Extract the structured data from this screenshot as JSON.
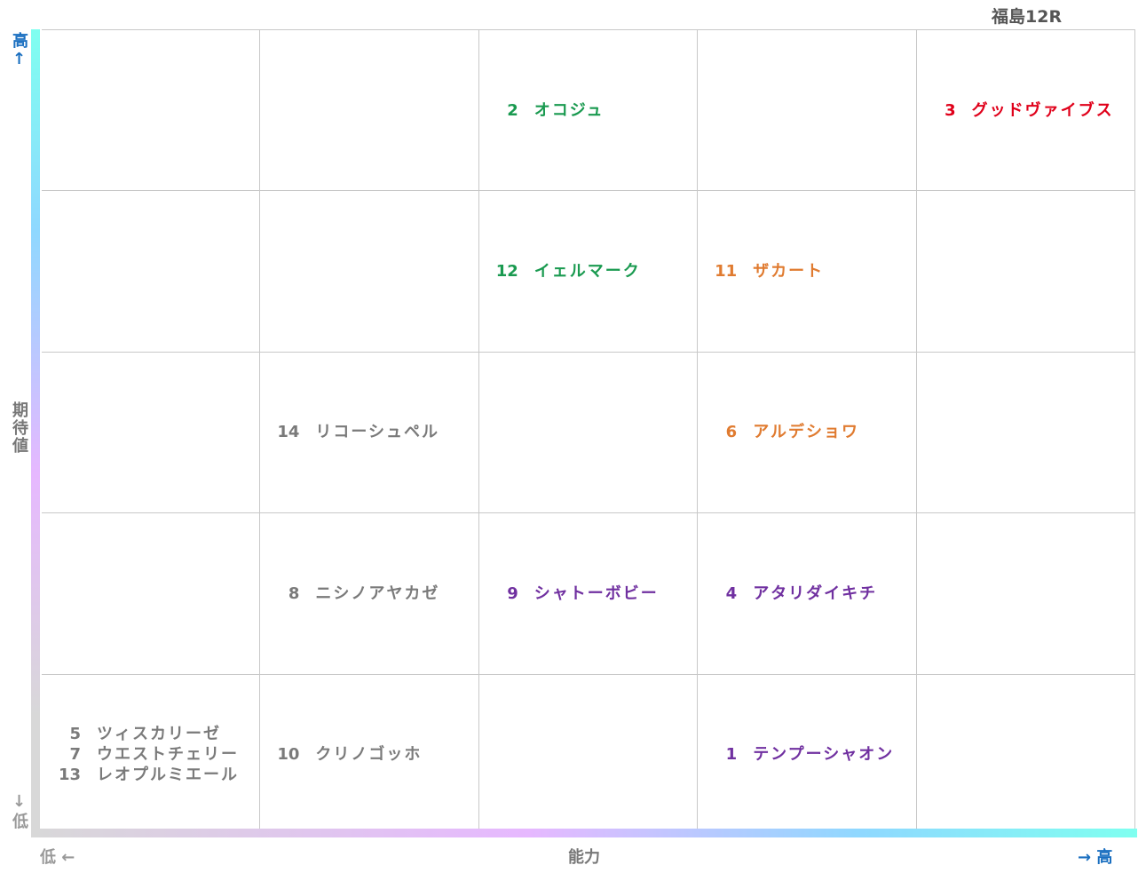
{
  "title": "福島12R",
  "y_axis": {
    "high": "高↑",
    "label": "期待値",
    "low": "↓低"
  },
  "x_axis": {
    "low": "低 ←",
    "label": "能力",
    "high": "→ 高"
  },
  "grid": {
    "rows": [
      [
        [],
        [],
        [
          {
            "number": 2,
            "name": "オコジュ",
            "color": "#1a9a50"
          }
        ],
        [],
        [
          {
            "number": 3,
            "name": "グッドヴァイブス",
            "color": "#e0001a"
          }
        ]
      ],
      [
        [],
        [],
        [
          {
            "number": 12,
            "name": "イェルマーク",
            "color": "#1a9a50"
          }
        ],
        [
          {
            "number": 11,
            "name": "ザカート",
            "color": "#e07b30"
          }
        ],
        []
      ],
      [
        [],
        [
          {
            "number": 14,
            "name": "リコーシュペル",
            "color": "#7a7a7a"
          }
        ],
        [],
        [
          {
            "number": 6,
            "name": "アルデショワ",
            "color": "#e07b30"
          }
        ],
        []
      ],
      [
        [],
        [
          {
            "number": 8,
            "name": "ニシノアヤカゼ",
            "color": "#7a7a7a"
          }
        ],
        [
          {
            "number": 9,
            "name": "シャトーボビー",
            "color": "#7030a0"
          }
        ],
        [
          {
            "number": 4,
            "name": "アタリダイキチ",
            "color": "#7030a0"
          }
        ],
        []
      ],
      [
        [
          {
            "number": 5,
            "name": "ツィスカリーゼ",
            "color": "#7a7a7a"
          },
          {
            "number": 7,
            "name": "ウエストチェリー",
            "color": "#7a7a7a"
          },
          {
            "number": 13,
            "name": "レオプルミエール",
            "color": "#7a7a7a"
          }
        ],
        [
          {
            "number": 10,
            "name": "クリノゴッホ",
            "color": "#7a7a7a"
          }
        ],
        [],
        [
          {
            "number": 1,
            "name": "テンプーシャオン",
            "color": "#7030a0"
          }
        ],
        []
      ]
    ]
  }
}
